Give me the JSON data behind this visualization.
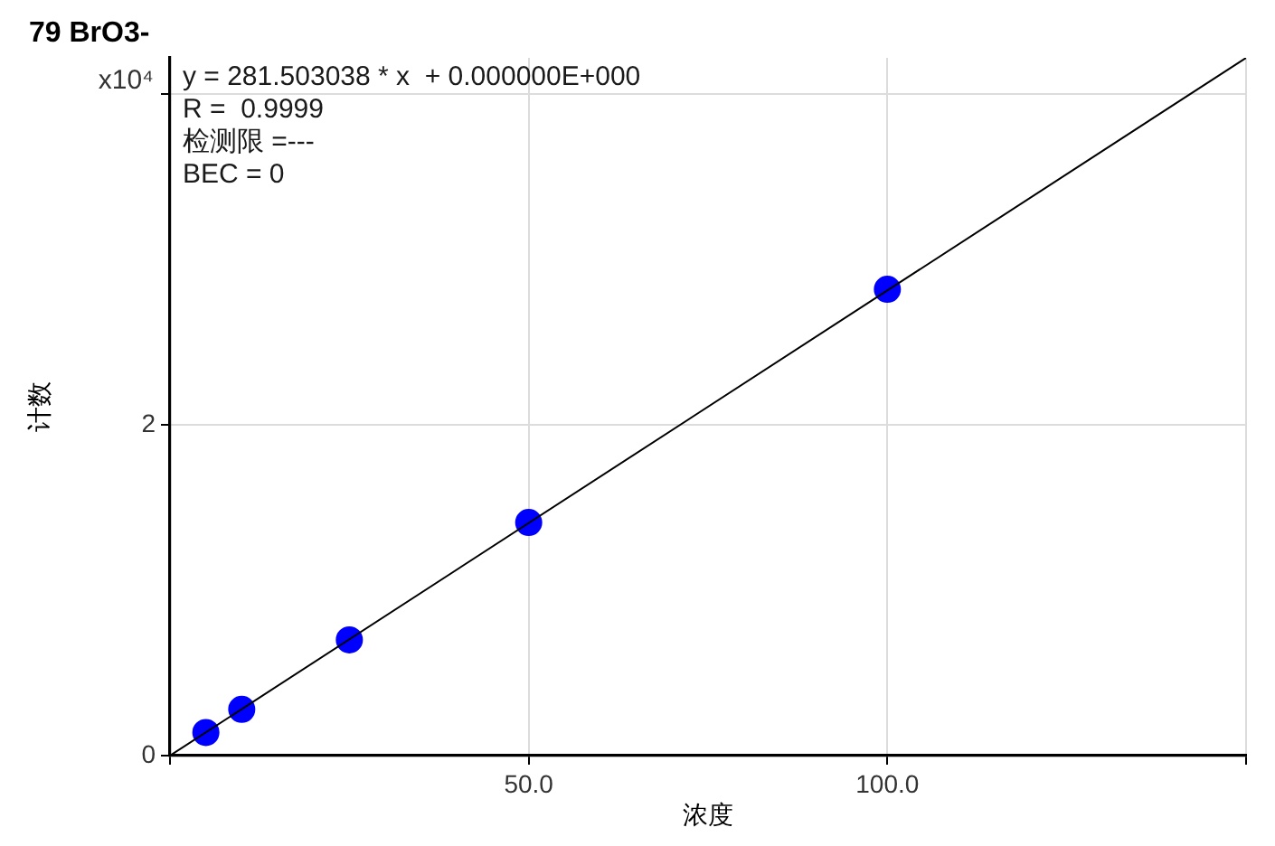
{
  "chart_data": {
    "type": "scatter",
    "title": "79 BrO3-",
    "xlabel": "浓度",
    "ylabel": "计数",
    "annotations": [
      "x10⁴",
      "y = 281.503038 * x  + 0.000000E+000",
      "R =  0.9999",
      "检测限 =---",
      "BEC = 0"
    ],
    "series": [
      {
        "type": "scatter",
        "color": "#0000ff",
        "marker": "circle",
        "x": [
          5,
          10,
          25,
          50,
          100
        ],
        "values": [
          0.14,
          0.28,
          0.7,
          1.41,
          2.82
        ]
      },
      {
        "type": "line",
        "color": "#000000",
        "marker": "none",
        "line_style": "solid",
        "x": [
          0,
          150
        ],
        "values": [
          0,
          4.22
        ]
      }
    ],
    "xlim": [
      0,
      150
    ],
    "ylim": [
      0,
      4.22
    ],
    "xticks": [
      {
        "value": 0,
        "label": null
      },
      {
        "value": 50,
        "label": "50.0"
      },
      {
        "value": 100,
        "label": "100.0"
      },
      {
        "value": 150,
        "label": null
      }
    ],
    "yticks": [
      0,
      2,
      {
        "value": 4,
        "label": null
      }
    ],
    "grid": true,
    "legend": false
  }
}
